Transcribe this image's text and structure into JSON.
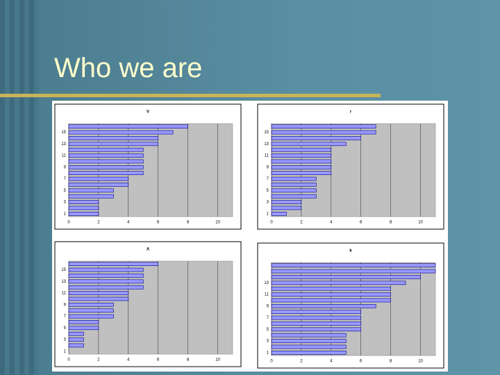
{
  "title": "Who we are",
  "chart_data": [
    {
      "type": "bar",
      "orientation": "horizontal",
      "title": "V",
      "color": "#9999ff",
      "grid": true,
      "categories": [
        1,
        null,
        3,
        null,
        5,
        null,
        7,
        null,
        9,
        null,
        11,
        null,
        13,
        null,
        15,
        null
      ],
      "values": [
        2,
        2,
        2,
        3,
        3,
        4,
        4,
        5,
        5,
        5,
        5,
        5,
        6,
        6,
        7,
        8
      ],
      "xlim": [
        0,
        11
      ],
      "xticks": [
        0,
        2,
        4,
        6,
        8,
        10
      ]
    },
    {
      "type": "bar",
      "orientation": "horizontal",
      "title": "r",
      "color": "#9999ff",
      "grid": true,
      "categories": [
        1,
        null,
        3,
        null,
        5,
        null,
        7,
        null,
        9,
        null,
        11,
        null,
        13,
        null,
        15,
        null
      ],
      "values": [
        1,
        2,
        2,
        3,
        3,
        3,
        3,
        4,
        4,
        4,
        4,
        4,
        5,
        6,
        7,
        7
      ],
      "xlim": [
        0,
        11
      ],
      "xticks": [
        0,
        2,
        4,
        6,
        8,
        10
      ]
    },
    {
      "type": "bar",
      "orientation": "horizontal",
      "title": "A",
      "color": "#9999ff",
      "grid": true,
      "categories": [
        1,
        null,
        3,
        null,
        5,
        null,
        7,
        null,
        9,
        null,
        11,
        null,
        13,
        null,
        15,
        null
      ],
      "values": [
        0,
        1,
        1,
        1,
        2,
        2,
        3,
        3,
        3,
        4,
        4,
        5,
        5,
        5,
        5,
        6
      ],
      "xlim": [
        0,
        11
      ],
      "xticks": [
        0,
        2,
        4,
        6,
        8,
        10
      ]
    },
    {
      "type": "bar",
      "orientation": "horizontal",
      "title": "k",
      "color": "#9999ff",
      "grid": true,
      "categories": [
        1,
        null,
        3,
        null,
        5,
        null,
        7,
        null,
        9,
        null,
        11,
        null,
        13,
        null,
        null,
        null
      ],
      "values": [
        5,
        5,
        5,
        5,
        6,
        6,
        6,
        6,
        7,
        8,
        8,
        8,
        9,
        10,
        11,
        11
      ],
      "xlim": [
        0,
        11
      ],
      "xticks": [
        0,
        2,
        4,
        6,
        8,
        10
      ]
    }
  ]
}
